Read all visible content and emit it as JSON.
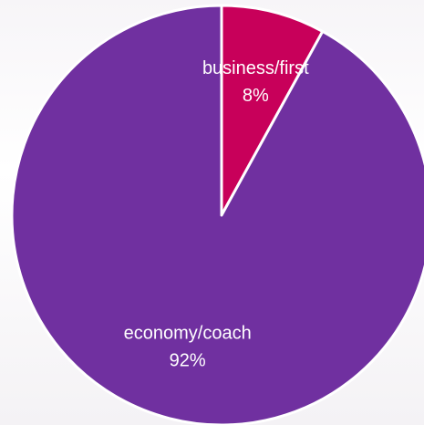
{
  "chart_data": {
    "type": "pie",
    "categories": [
      "business/first",
      "economy/coach"
    ],
    "values": [
      8,
      92
    ],
    "value_labels": [
      "8%",
      "92%"
    ],
    "colors": [
      "#c8005a",
      "#7030a0"
    ]
  }
}
